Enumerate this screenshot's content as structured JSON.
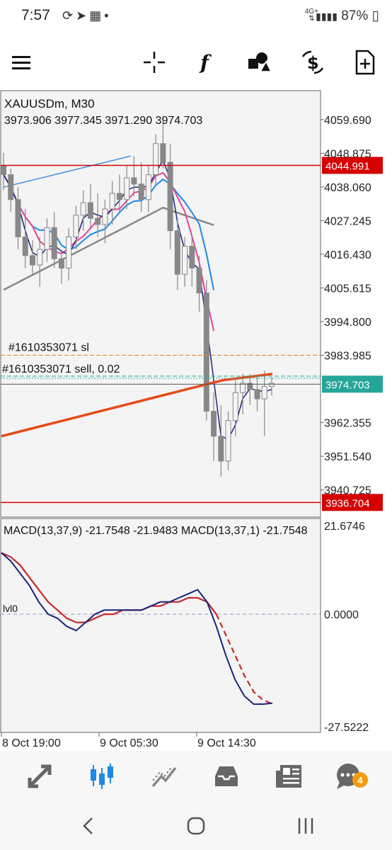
{
  "status_bar": {
    "time": "7:57",
    "icons": [
      "sync-icon",
      "telegram-icon",
      "calendar-icon",
      "dot-icon"
    ],
    "network": "4G+",
    "battery": "87%"
  },
  "toolbar": {
    "icons": [
      "menu-icon",
      "crosshair-icon",
      "function-icon",
      "objects-icon",
      "trade-icon",
      "new-order-icon"
    ]
  },
  "chart_data": [
    {
      "type": "candlestick",
      "symbol_label": "XAUUSDm, M30",
      "ohlc_label": "3973.906 3977.345 3971.290 3974.703",
      "y_ticks": [
        "4059.690",
        "4048.875",
        "4038.060",
        "4027.245",
        "4016.430",
        "4005.615",
        "3994.800",
        "3983.985",
        "3962.355",
        "3951.540",
        "3940.725"
      ],
      "ylim": [
        3932,
        4069
      ],
      "price_tags": [
        {
          "value": 4044.991,
          "label": "4044.991",
          "color": "#d50000"
        },
        {
          "value": 3974.703,
          "label": "3974.703",
          "color": "#26a69a"
        },
        {
          "value": 3936.704,
          "label": "3936.704",
          "color": "#d50000"
        }
      ],
      "trade_labels": [
        "#1610353071 sl",
        "#1610353071 sell, 0.02"
      ],
      "x_ticks": [
        "8 Oct 19:00",
        "9 Oct 05:30",
        "9 Oct 14:30"
      ],
      "candles": [
        [
          4045,
          4049,
          4037,
          4042
        ],
        [
          4042,
          4044,
          4030,
          4034
        ],
        [
          4034,
          4038,
          4018,
          4022
        ],
        [
          4022,
          4031,
          4012,
          4016
        ],
        [
          4016,
          4021,
          4010,
          4013
        ],
        [
          4013,
          4022,
          4006,
          4018
        ],
        [
          4018,
          4028,
          4014,
          4025
        ],
        [
          4025,
          4030,
          4012,
          4015
        ],
        [
          4015,
          4018,
          4007,
          4012
        ],
        [
          4012,
          4025,
          4008,
          4022
        ],
        [
          4022,
          4032,
          4018,
          4029
        ],
        [
          4029,
          4037,
          4024,
          4033
        ],
        [
          4033,
          4039,
          4025,
          4028
        ],
        [
          4028,
          4036,
          4022,
          4026
        ],
        [
          4026,
          4034,
          4020,
          4031
        ],
        [
          4031,
          4040,
          4026,
          4036
        ],
        [
          4036,
          4042,
          4030,
          4034
        ],
        [
          4034,
          4045,
          4031,
          4041
        ],
        [
          4041,
          4048,
          4035,
          4039
        ],
        [
          4039,
          4046,
          4030,
          4034
        ],
        [
          4034,
          4045,
          4030,
          4042
        ],
        [
          4042,
          4055,
          4039,
          4052
        ],
        [
          4052,
          4061,
          4044,
          4046
        ],
        [
          4046,
          4052,
          4018,
          4024
        ],
        [
          4024,
          4028,
          4005,
          4010
        ],
        [
          4010,
          4022,
          4006,
          4019
        ],
        [
          4019,
          4023,
          4006,
          4012
        ],
        [
          4012,
          4016,
          3998,
          4004
        ],
        [
          4004,
          4008,
          3963,
          3966
        ],
        [
          3966,
          3972,
          3950,
          3958
        ],
        [
          3958,
          3968,
          3945,
          3950
        ],
        [
          3950,
          3966,
          3947,
          3963
        ],
        [
          3963,
          3976,
          3958,
          3972
        ],
        [
          3972,
          3978,
          3965,
          3975
        ],
        [
          3975,
          3978,
          3968,
          3973
        ],
        [
          3973,
          3977,
          3966,
          3970
        ],
        [
          3970,
          3979,
          3958,
          3974
        ],
        [
          3974,
          3977,
          3971,
          3975
        ]
      ]
    },
    {
      "type": "line",
      "indicator_label": "MACD(13,37,9) -21.7548 -21.9483 MACD(13,37,1) -21.7548",
      "zero_label": "0.0000",
      "level_label": "lvl0",
      "y_ticks": [
        "21.6746",
        "0.0000",
        "-27.5222"
      ],
      "ylim": [
        -27.5222,
        21.6746
      ],
      "series": [
        {
          "color": "#1a237e",
          "values": [
            15,
            13,
            10,
            7,
            3,
            0,
            -1,
            -3,
            -4,
            -2,
            0,
            1,
            1,
            1,
            1,
            1,
            2,
            3,
            3,
            4,
            5,
            6,
            3,
            -3,
            -10,
            -16,
            -20,
            -22,
            -22,
            -21.7548
          ]
        },
        {
          "color": "#c62828",
          "values": [
            15,
            14,
            12,
            9,
            6,
            3,
            1,
            -1,
            -2,
            -2,
            -1,
            0,
            0,
            1,
            1,
            1,
            2,
            2,
            3,
            3,
            4,
            4,
            3,
            0,
            -5,
            -10,
            -15,
            -19,
            -21,
            -21.9483
          ]
        }
      ]
    }
  ],
  "bottom_nav": {
    "icons": [
      "quotes-icon",
      "chart-icon",
      "trade-icon",
      "history-icon",
      "news-icon",
      "messages-icon"
    ],
    "messages_badge": "4"
  },
  "system_nav": {
    "icons": [
      "back-icon",
      "home-icon",
      "recents-icon"
    ]
  }
}
